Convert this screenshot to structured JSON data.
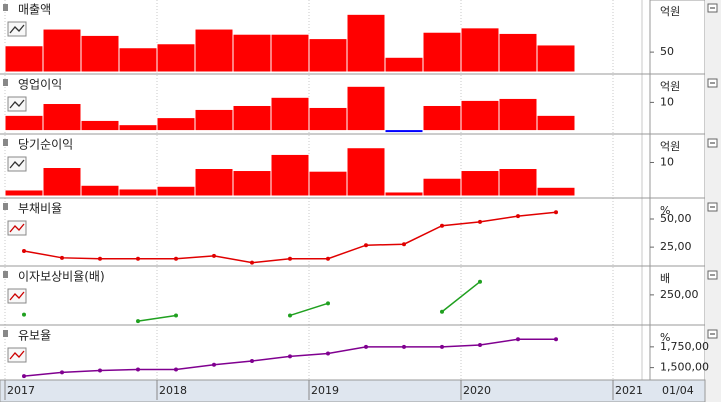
{
  "chart_data": {
    "type": "multi-panel",
    "x_labels": [
      "2017",
      "2018",
      "2019",
      "2020",
      "2021"
    ],
    "date_label": "01/04",
    "panels": [
      {
        "type": "bar",
        "title": "매출액",
        "title_color": "#c00000",
        "unit": "억원",
        "color": "#ff0000",
        "negative_color": "#0000ff",
        "values": [
          66,
          108,
          92,
          61,
          71,
          108,
          95,
          95,
          84,
          145,
          37,
          100,
          111,
          97,
          68
        ],
        "ylim": [
          0,
          176
        ],
        "yticks": [
          50
        ]
      },
      {
        "type": "bar",
        "title": "영업이익",
        "title_color": "#800080",
        "unit": "억원",
        "color": "#ff0000",
        "negative_color": "#0000ff",
        "values": [
          5.4,
          9.6,
          3.6,
          2.1,
          4.6,
          7.5,
          8.9,
          11.8,
          8.2,
          15.7,
          -0.4,
          8.9,
          10.7,
          11.4,
          5.4
        ],
        "ylim": [
          -0.5,
          19
        ],
        "yticks": [
          10
        ]
      },
      {
        "type": "bar",
        "title": "당기순이익",
        "title_color": "#a00000",
        "unit": "억원",
        "color": "#ff0000",
        "negative_color": "#0000ff",
        "values": [
          1.8,
          8.5,
          3.2,
          2.1,
          2.9,
          8.2,
          7.6,
          12.4,
          7.4,
          14.4,
          1.2,
          5.3,
          7.6,
          8.2,
          2.6
        ],
        "ylim": [
          0,
          17.6
        ],
        "yticks": [
          10
        ]
      },
      {
        "type": "line",
        "title": "부채비율",
        "title_color": "#c00000",
        "unit": "%",
        "color": "#e00000",
        "values": [
          21.6,
          15.5,
          14.7,
          14.7,
          14.7,
          17.2,
          11.2,
          14.7,
          14.7,
          26.7,
          27.6,
          44.0,
          47.4,
          52.6,
          56.0
        ],
        "ylim": [
          10,
          66
        ],
        "yticks": [
          {
            "value": 50,
            "label": "50,00"
          },
          {
            "value": 25,
            "label": "25,00"
          }
        ]
      },
      {
        "type": "line",
        "title": "이자보상비율(배)",
        "title_color": "#008000",
        "unit": "배",
        "color": "#20a020",
        "values": [
          75,
          null,
          null,
          17,
          67,
          null,
          null,
          67,
          175,
          null,
          null,
          100,
          367,
          null,
          null
        ],
        "ylim": [
          0,
          480
        ],
        "yticks": [
          {
            "value": 250,
            "label": "250,00"
          }
        ]
      },
      {
        "type": "line",
        "title": "유보율",
        "title_color": "#800080",
        "unit": "%",
        "color": "#800090",
        "values": [
          1398,
          1443,
          1466,
          1477,
          1477,
          1534,
          1580,
          1636,
          1670,
          1750,
          1750,
          1750,
          1773,
          1841,
          1841
        ],
        "ylim": [
          1375,
          1977
        ],
        "yticks": [
          {
            "value": 1750,
            "label": "1,750,00"
          },
          {
            "value": 1500,
            "label": "1,500,00"
          }
        ]
      }
    ]
  }
}
